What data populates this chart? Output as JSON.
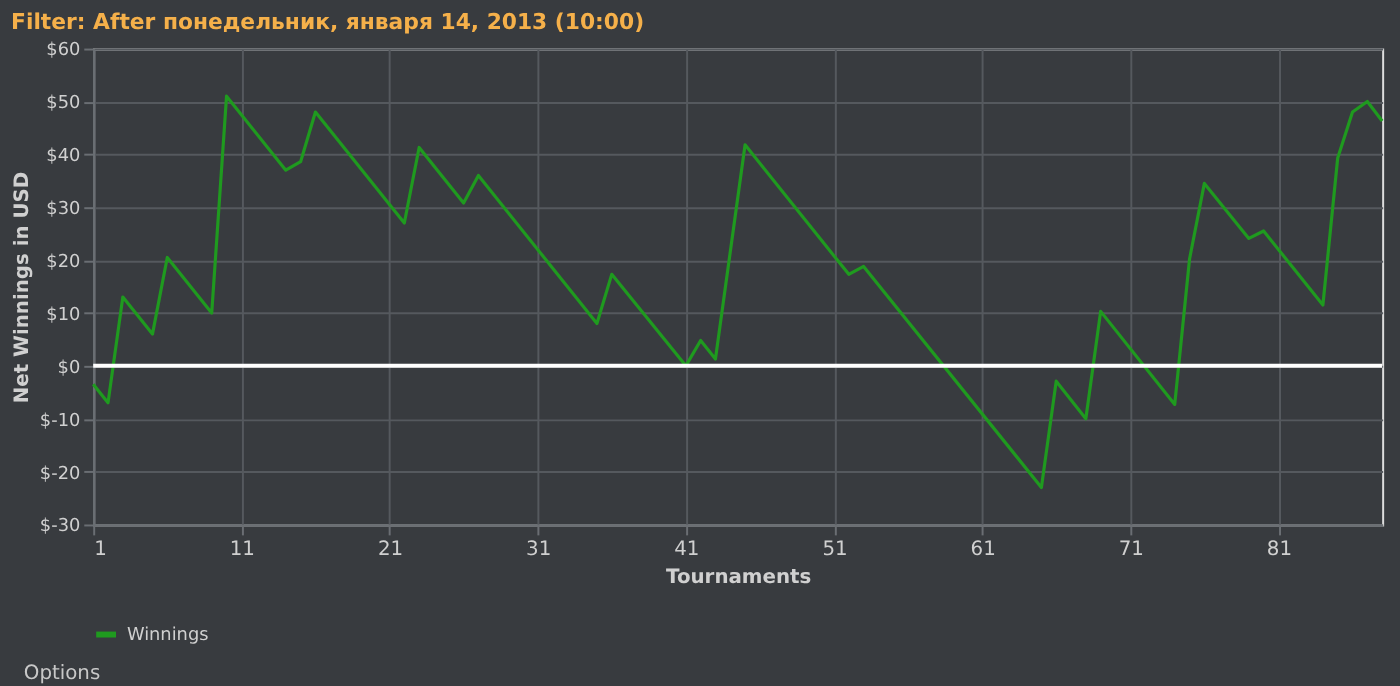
{
  "chart_data": {
    "type": "line",
    "title": "Filter: After понедельник, января 14, 2013 (10:00)",
    "xlabel": "Tournaments",
    "ylabel": "Net Winnings in USD",
    "x": [
      1,
      2,
      3,
      5,
      6,
      9,
      10,
      14,
      15,
      16,
      22,
      23,
      26,
      27,
      35,
      36,
      41,
      42,
      43,
      45,
      52,
      53,
      65,
      66,
      68,
      69,
      74,
      75,
      76,
      79,
      80,
      84,
      85,
      86,
      87,
      88
    ],
    "series": [
      {
        "name": "Winnings",
        "color": "#1f9a1f",
        "values": [
          -3.5,
          -7,
          13,
          6,
          20.5,
          10,
          51,
          37,
          38.6,
          48,
          27,
          41.3,
          30.8,
          36,
          8,
          17.3,
          0,
          4.8,
          1.3,
          41.8,
          17.3,
          18.8,
          -23,
          -2.9,
          -10,
          10.3,
          -7.3,
          20.2,
          34.5,
          24.1,
          25.5,
          11.5,
          39.3,
          48,
          50,
          46.3
        ]
      }
    ],
    "xlim": [
      1,
      88
    ],
    "xticks": [
      1,
      11,
      21,
      31,
      41,
      51,
      61,
      71,
      81
    ],
    "ylim": [
      -30,
      60
    ],
    "yticks": [
      {
        "value": -30,
        "label": "$-30"
      },
      {
        "value": -20,
        "label": "$-20"
      },
      {
        "value": -10,
        "label": "$-10"
      },
      {
        "value": 0,
        "label": "$0"
      },
      {
        "value": 10,
        "label": "$10"
      },
      {
        "value": 20,
        "label": "$20"
      },
      {
        "value": 30,
        "label": "$30"
      },
      {
        "value": 40,
        "label": "$40"
      },
      {
        "value": 50,
        "label": "$50"
      },
      {
        "value": 60,
        "label": "$60"
      }
    ],
    "ref_lines": [
      {
        "axis": "y",
        "value": 0,
        "label": null,
        "color": "#ffffff"
      }
    ],
    "grid": true,
    "legend": "bottom",
    "marker": "none",
    "line_style": "solid",
    "annotations": [
      "Options"
    ]
  }
}
